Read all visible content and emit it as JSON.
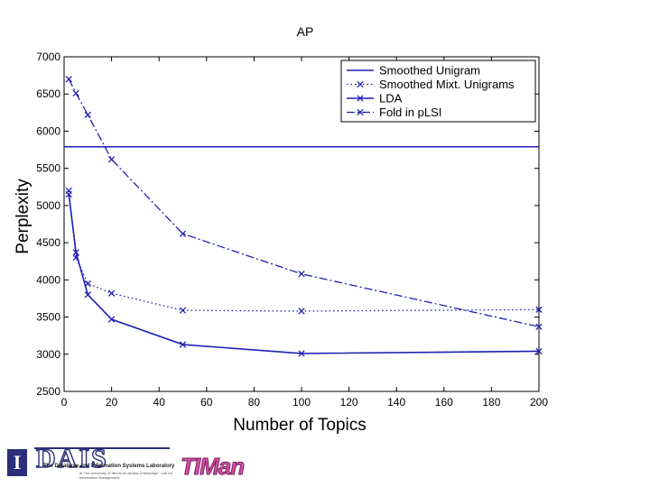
{
  "chart_data": {
    "type": "line",
    "title": "AP",
    "xlabel": "Number of Topics",
    "ylabel": "Perplexity",
    "xlim": [
      0,
      200
    ],
    "ylim": [
      2500,
      7000
    ],
    "xticks": [
      0,
      20,
      40,
      60,
      80,
      100,
      120,
      140,
      160,
      180,
      200
    ],
    "yticks": [
      2500,
      3000,
      3500,
      4000,
      4500,
      5000,
      5500,
      6000,
      6500,
      7000
    ],
    "grid": false,
    "legend_position": "top-right",
    "series": [
      {
        "name": "Smoothed Unigram",
        "style": "solid",
        "marker": "none",
        "x": [
          0,
          200
        ],
        "y": [
          5790,
          5790
        ]
      },
      {
        "name": "Smoothed Mixt. Unigrams",
        "style": "dotted",
        "marker": "x",
        "x": [
          2,
          5,
          10,
          20,
          50,
          100,
          200
        ],
        "y": [
          5200,
          4300,
          3950,
          3820,
          3590,
          3580,
          3600
        ]
      },
      {
        "name": "LDA",
        "style": "solid",
        "marker": "x",
        "x": [
          2,
          5,
          10,
          20,
          50,
          100,
          200
        ],
        "y": [
          5150,
          4370,
          3800,
          3470,
          3130,
          3010,
          3040
        ]
      },
      {
        "name": "Fold in pLSI",
        "style": "dashdot",
        "marker": "x",
        "x": [
          2,
          5,
          10,
          20,
          50,
          100,
          200
        ],
        "y": [
          6700,
          6510,
          6220,
          5620,
          4620,
          4080,
          3370
        ]
      }
    ],
    "color": "#1f1fb4"
  },
  "footer": {
    "ui_mark": "I",
    "dais_name": "DAIS",
    "dais_subtitle": "The Database and Information Systems Laboratory",
    "dais_detail": "at The University of Illinois at Urbana-Champaign · Lab for Information Management",
    "timan_name": "TIMan"
  }
}
